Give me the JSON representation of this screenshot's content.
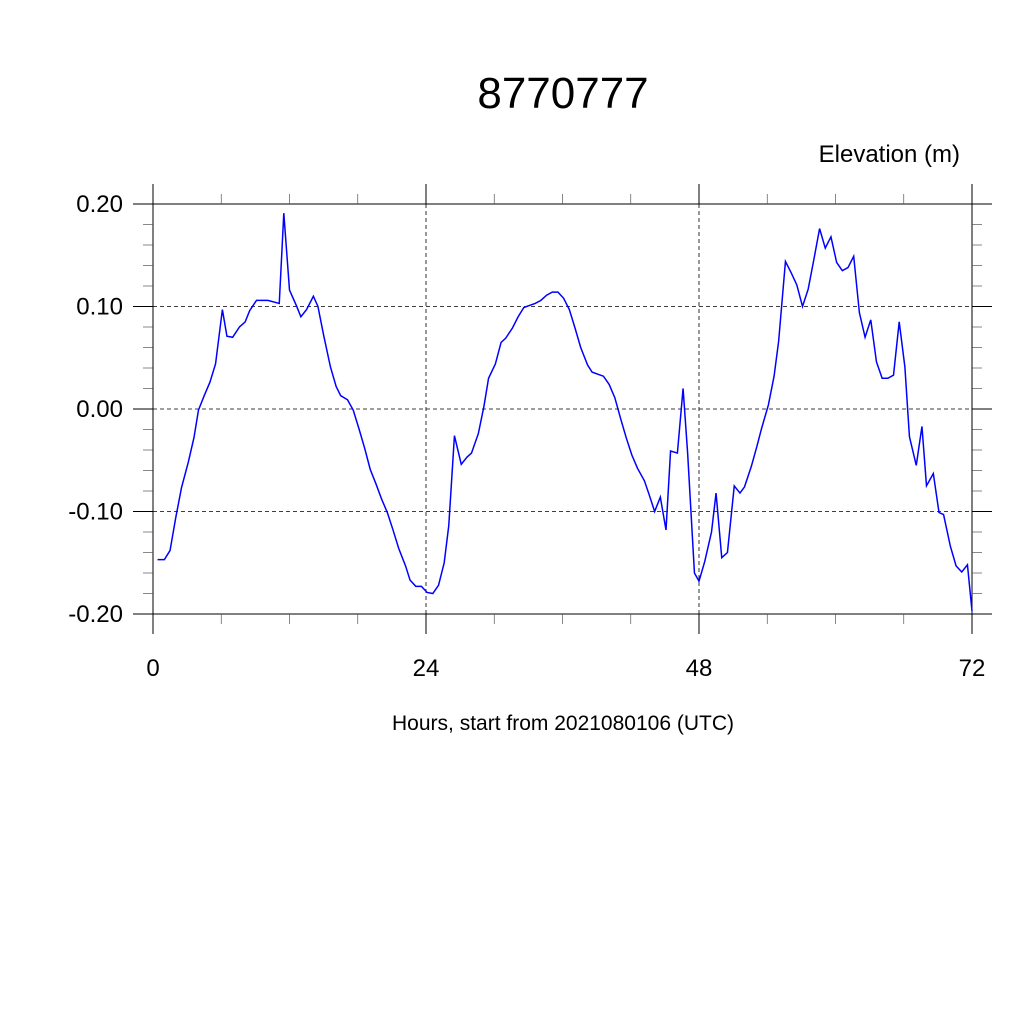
{
  "chart_data": {
    "type": "line",
    "title": "8770777",
    "y_label": "Elevation (m)",
    "x_label": "Hours, start from 2021080106 (UTC)",
    "xlim": [
      0,
      72
    ],
    "ylim": [
      -0.2,
      0.2
    ],
    "xticks": [
      0,
      24,
      48,
      72
    ],
    "xminorticks": [
      6,
      12,
      18,
      30,
      36,
      42,
      54,
      60,
      66
    ],
    "yticks": [
      {
        "value": -0.2,
        "label": "-0.20"
      },
      {
        "value": -0.1,
        "label": "-0.10"
      },
      {
        "value": 0,
        "label": "0.00"
      },
      {
        "value": 0.1,
        "label": "0.10"
      },
      {
        "value": 0.2,
        "label": "0.20"
      }
    ],
    "yminorticks": [
      -0.18,
      -0.16,
      -0.14,
      -0.12,
      -0.08,
      -0.06,
      -0.04,
      -0.02,
      0.02,
      0.04,
      0.06,
      0.08,
      0.12,
      0.14,
      0.16,
      0.18
    ],
    "grid": true,
    "series": [
      {
        "color": "#0000ff",
        "x": [
          0.4,
          1.0,
          1.5,
          2.0,
          2.5,
          3.1,
          3.6,
          4.0,
          4.5,
          5.0,
          5.5,
          6.1,
          6.5,
          7.0,
          7.6,
          8.1,
          8.5,
          9.1,
          9.6,
          10.1,
          11.1,
          11.5,
          12.0,
          12.6,
          13.0,
          13.5,
          14.1,
          14.5,
          15.0,
          15.6,
          16.1,
          16.5,
          17.1,
          17.6,
          18.1,
          18.6,
          19.1,
          19.6,
          20.1,
          20.6,
          21.1,
          21.6,
          22.2,
          22.6,
          23.1,
          23.6,
          24.1,
          24.6,
          25.1,
          25.6,
          26.0,
          26.5,
          27.1,
          27.6,
          28.0,
          28.6,
          29.1,
          29.5,
          30.1,
          30.6,
          31.0,
          31.6,
          32.1,
          32.6,
          33.1,
          33.6,
          34.1,
          34.6,
          35.1,
          35.6,
          36.1,
          36.6,
          37.1,
          37.6,
          38.2,
          38.6,
          39.1,
          39.6,
          40.1,
          40.6,
          41.1,
          41.6,
          42.1,
          42.6,
          43.2,
          43.6,
          44.1,
          44.6,
          45.1,
          45.5,
          46.1,
          46.6,
          47.0,
          47.6,
          48.0,
          48.5,
          49.1,
          49.5,
          50.0,
          50.5,
          51.1,
          51.6,
          52.0,
          52.6,
          53.1,
          53.5,
          54.1,
          54.6,
          55.0,
          55.6,
          56.1,
          56.6,
          57.1,
          57.6,
          58.1,
          58.6,
          59.1,
          59.6,
          60.1,
          60.6,
          61.1,
          61.6,
          62.1,
          62.6,
          63.1,
          63.6,
          64.1,
          64.6,
          65.1,
          65.6,
          66.1,
          66.5,
          67.1,
          67.6,
          68.0,
          68.6,
          69.1,
          69.5,
          70.1,
          70.6,
          71.1,
          71.6,
          72.0
        ],
        "values": [
          -0.147,
          -0.147,
          -0.138,
          -0.106,
          -0.077,
          -0.052,
          -0.028,
          -0.001,
          0.013,
          0.026,
          0.044,
          0.097,
          0.071,
          0.07,
          0.08,
          0.085,
          0.096,
          0.106,
          0.106,
          0.106,
          0.103,
          0.191,
          0.116,
          0.101,
          0.09,
          0.097,
          0.11,
          0.1,
          0.072,
          0.041,
          0.022,
          0.013,
          0.009,
          -0.001,
          -0.019,
          -0.038,
          -0.059,
          -0.073,
          -0.088,
          -0.101,
          -0.118,
          -0.136,
          -0.153,
          -0.167,
          -0.173,
          -0.173,
          -0.179,
          -0.18,
          -0.172,
          -0.15,
          -0.114,
          -0.026,
          -0.054,
          -0.047,
          -0.043,
          -0.024,
          0.003,
          0.03,
          0.044,
          0.065,
          0.069,
          0.079,
          0.09,
          0.099,
          0.101,
          0.103,
          0.106,
          0.111,
          0.114,
          0.114,
          0.108,
          0.097,
          0.079,
          0.06,
          0.043,
          0.036,
          0.034,
          0.032,
          0.024,
          0.011,
          -0.009,
          -0.028,
          -0.045,
          -0.058,
          -0.07,
          -0.083,
          -0.1,
          -0.086,
          -0.118,
          -0.041,
          -0.043,
          0.02,
          -0.043,
          -0.16,
          -0.168,
          -0.149,
          -0.12,
          -0.082,
          -0.145,
          -0.14,
          -0.075,
          -0.082,
          -0.076,
          -0.056,
          -0.036,
          -0.019,
          0.004,
          0.032,
          0.066,
          0.144,
          0.133,
          0.121,
          0.1,
          0.117,
          0.146,
          0.176,
          0.157,
          0.168,
          0.143,
          0.135,
          0.138,
          0.149,
          0.094,
          0.07,
          0.087,
          0.046,
          0.03,
          0.03,
          0.033,
          0.085,
          0.041,
          -0.027,
          -0.055,
          -0.017,
          -0.075,
          -0.063,
          -0.101,
          -0.103,
          -0.134,
          -0.153,
          -0.159,
          -0.152,
          -0.197
        ]
      }
    ]
  }
}
